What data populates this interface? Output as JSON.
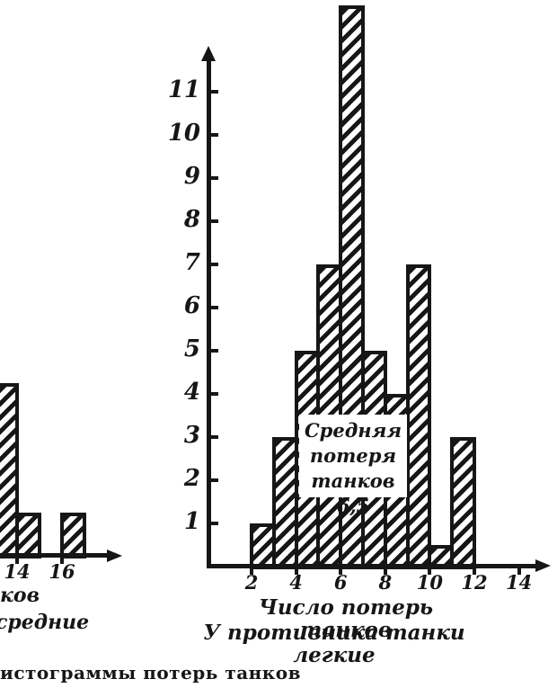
{
  "figure": {
    "background": "#ffffff",
    "ink": "#161616",
    "caption": "истограммы потерь танков"
  },
  "chart_data": [
    {
      "id": "left-histogram",
      "type": "bar",
      "subtype": "histogram",
      "clipped": "left edge of scan",
      "x_ticks": [
        14,
        16
      ],
      "bins": [
        {
          "x0": 13,
          "x1": 14,
          "count": 4,
          "clipped_left": true
        },
        {
          "x0": 14,
          "x1": 15,
          "count": 1
        },
        {
          "x0": 16,
          "x1": 17,
          "count": 1
        }
      ],
      "xlabel_fragments": [
        "ков",
        "средние"
      ]
    },
    {
      "id": "right-histogram",
      "type": "bar",
      "subtype": "histogram",
      "x_ticks": [
        2,
        4,
        6,
        8,
        10,
        12,
        14
      ],
      "y_ticks": [
        1,
        2,
        3,
        4,
        5,
        6,
        7,
        8,
        9,
        10,
        11
      ],
      "ylim": [
        0,
        13
      ],
      "bins": [
        {
          "x0": 2,
          "x1": 3,
          "count": 1
        },
        {
          "x0": 3,
          "x1": 4,
          "count": 3
        },
        {
          "x0": 4,
          "x1": 5,
          "count": 5
        },
        {
          "x0": 5,
          "x1": 6,
          "count": 7
        },
        {
          "x0": 6,
          "x1": 7,
          "count": 13
        },
        {
          "x0": 7,
          "x1": 8,
          "count": 5
        },
        {
          "x0": 8,
          "x1": 9,
          "count": 4
        },
        {
          "x0": 9,
          "x1": 10,
          "count": 7
        },
        {
          "x0": 10,
          "x1": 11,
          "count": 0.5
        },
        {
          "x0": 11,
          "x1": 12,
          "count": 3
        }
      ],
      "annotation": {
        "lines": [
          "Средняя",
          "потеря",
          "танков 6,5"
        ]
      },
      "xlabel": "Число потерь танков",
      "xlabel2": "У противника танки легкие"
    }
  ]
}
